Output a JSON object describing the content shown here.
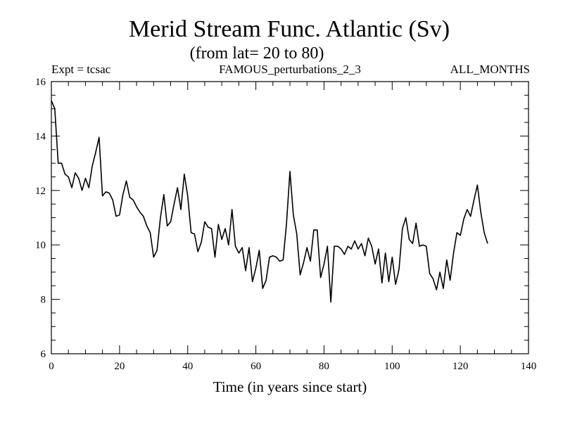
{
  "chart_data": {
    "type": "line",
    "title": "Merid Stream Func. Atlantic (Sv)",
    "subtitle": "(from lat= 20 to 80)",
    "header_left": "Expt = tcsac",
    "header_center": "FAMOUS_perturbations_2_3",
    "header_right": "ALL_MONTHS",
    "xlabel": "Time (in years since start)",
    "ylabel": "",
    "xlim": [
      0,
      140
    ],
    "ylim": [
      6,
      16
    ],
    "xticks": [
      0,
      20,
      40,
      60,
      80,
      100,
      120,
      140
    ],
    "yticks": [
      6,
      8,
      10,
      12,
      14,
      16
    ],
    "grid": false,
    "series": [
      {
        "name": "Merid Stream Func. Atlantic",
        "color": "#000000",
        "x": [
          0,
          1,
          2,
          3,
          4,
          5,
          6,
          7,
          8,
          9,
          10,
          11,
          12,
          13,
          14,
          15,
          16,
          17,
          18,
          19,
          20,
          21,
          22,
          23,
          24,
          25,
          26,
          27,
          28,
          29,
          30,
          31,
          32,
          33,
          34,
          35,
          36,
          37,
          38,
          39,
          40,
          41,
          42,
          43,
          44,
          45,
          46,
          47,
          48,
          49,
          50,
          51,
          52,
          53,
          54,
          55,
          56,
          57,
          58,
          59,
          60,
          61,
          62,
          63,
          64,
          65,
          66,
          67,
          68,
          69,
          70,
          71,
          72,
          73,
          74,
          75,
          76,
          77,
          78,
          79,
          80,
          81,
          82,
          83,
          84,
          85,
          86,
          87,
          88,
          89,
          90,
          91,
          92,
          93,
          94,
          95,
          96,
          97,
          98,
          99,
          100,
          101,
          102,
          103,
          104,
          105,
          106,
          107,
          108,
          109,
          110,
          111,
          112,
          113,
          114,
          115,
          116,
          117,
          118,
          119,
          120,
          121,
          122,
          123,
          124,
          125,
          126,
          127,
          128
        ],
        "values": [
          15.3,
          15.0,
          13.0,
          13.0,
          12.6,
          12.5,
          12.1,
          12.65,
          12.45,
          12.0,
          12.45,
          12.1,
          12.9,
          13.4,
          13.95,
          11.8,
          11.95,
          11.9,
          11.65,
          11.05,
          11.1,
          11.85,
          12.35,
          11.75,
          11.65,
          11.4,
          11.2,
          11.05,
          10.7,
          10.45,
          9.55,
          9.8,
          11.0,
          11.85,
          10.7,
          10.85,
          11.5,
          12.1,
          11.3,
          12.6,
          11.8,
          10.45,
          10.4,
          9.75,
          10.1,
          10.85,
          10.65,
          10.6,
          9.55,
          10.75,
          10.2,
          10.6,
          10.0,
          11.3,
          9.95,
          9.7,
          9.9,
          9.05,
          9.9,
          8.65,
          9.15,
          9.8,
          8.4,
          8.7,
          9.55,
          9.6,
          9.55,
          9.4,
          9.45,
          10.8,
          12.7,
          11.1,
          10.4,
          8.9,
          9.35,
          9.9,
          9.4,
          10.55,
          10.55,
          8.8,
          9.3,
          9.95,
          7.9,
          9.95,
          9.95,
          9.85,
          9.65,
          9.95,
          9.85,
          10.15,
          9.85,
          10.05,
          9.6,
          10.25,
          9.95,
          9.3,
          9.85,
          8.6,
          9.7,
          8.65,
          9.55,
          8.55,
          9.1,
          10.6,
          11.0,
          10.2,
          10.05,
          10.8,
          9.95,
          10.0,
          9.95,
          8.95,
          8.75,
          8.35,
          9.0,
          8.4,
          9.45,
          8.7,
          9.7,
          10.45,
          10.35,
          10.95,
          11.3,
          11.05,
          11.65,
          12.2,
          11.2,
          10.45,
          10.05
        ]
      }
    ]
  }
}
